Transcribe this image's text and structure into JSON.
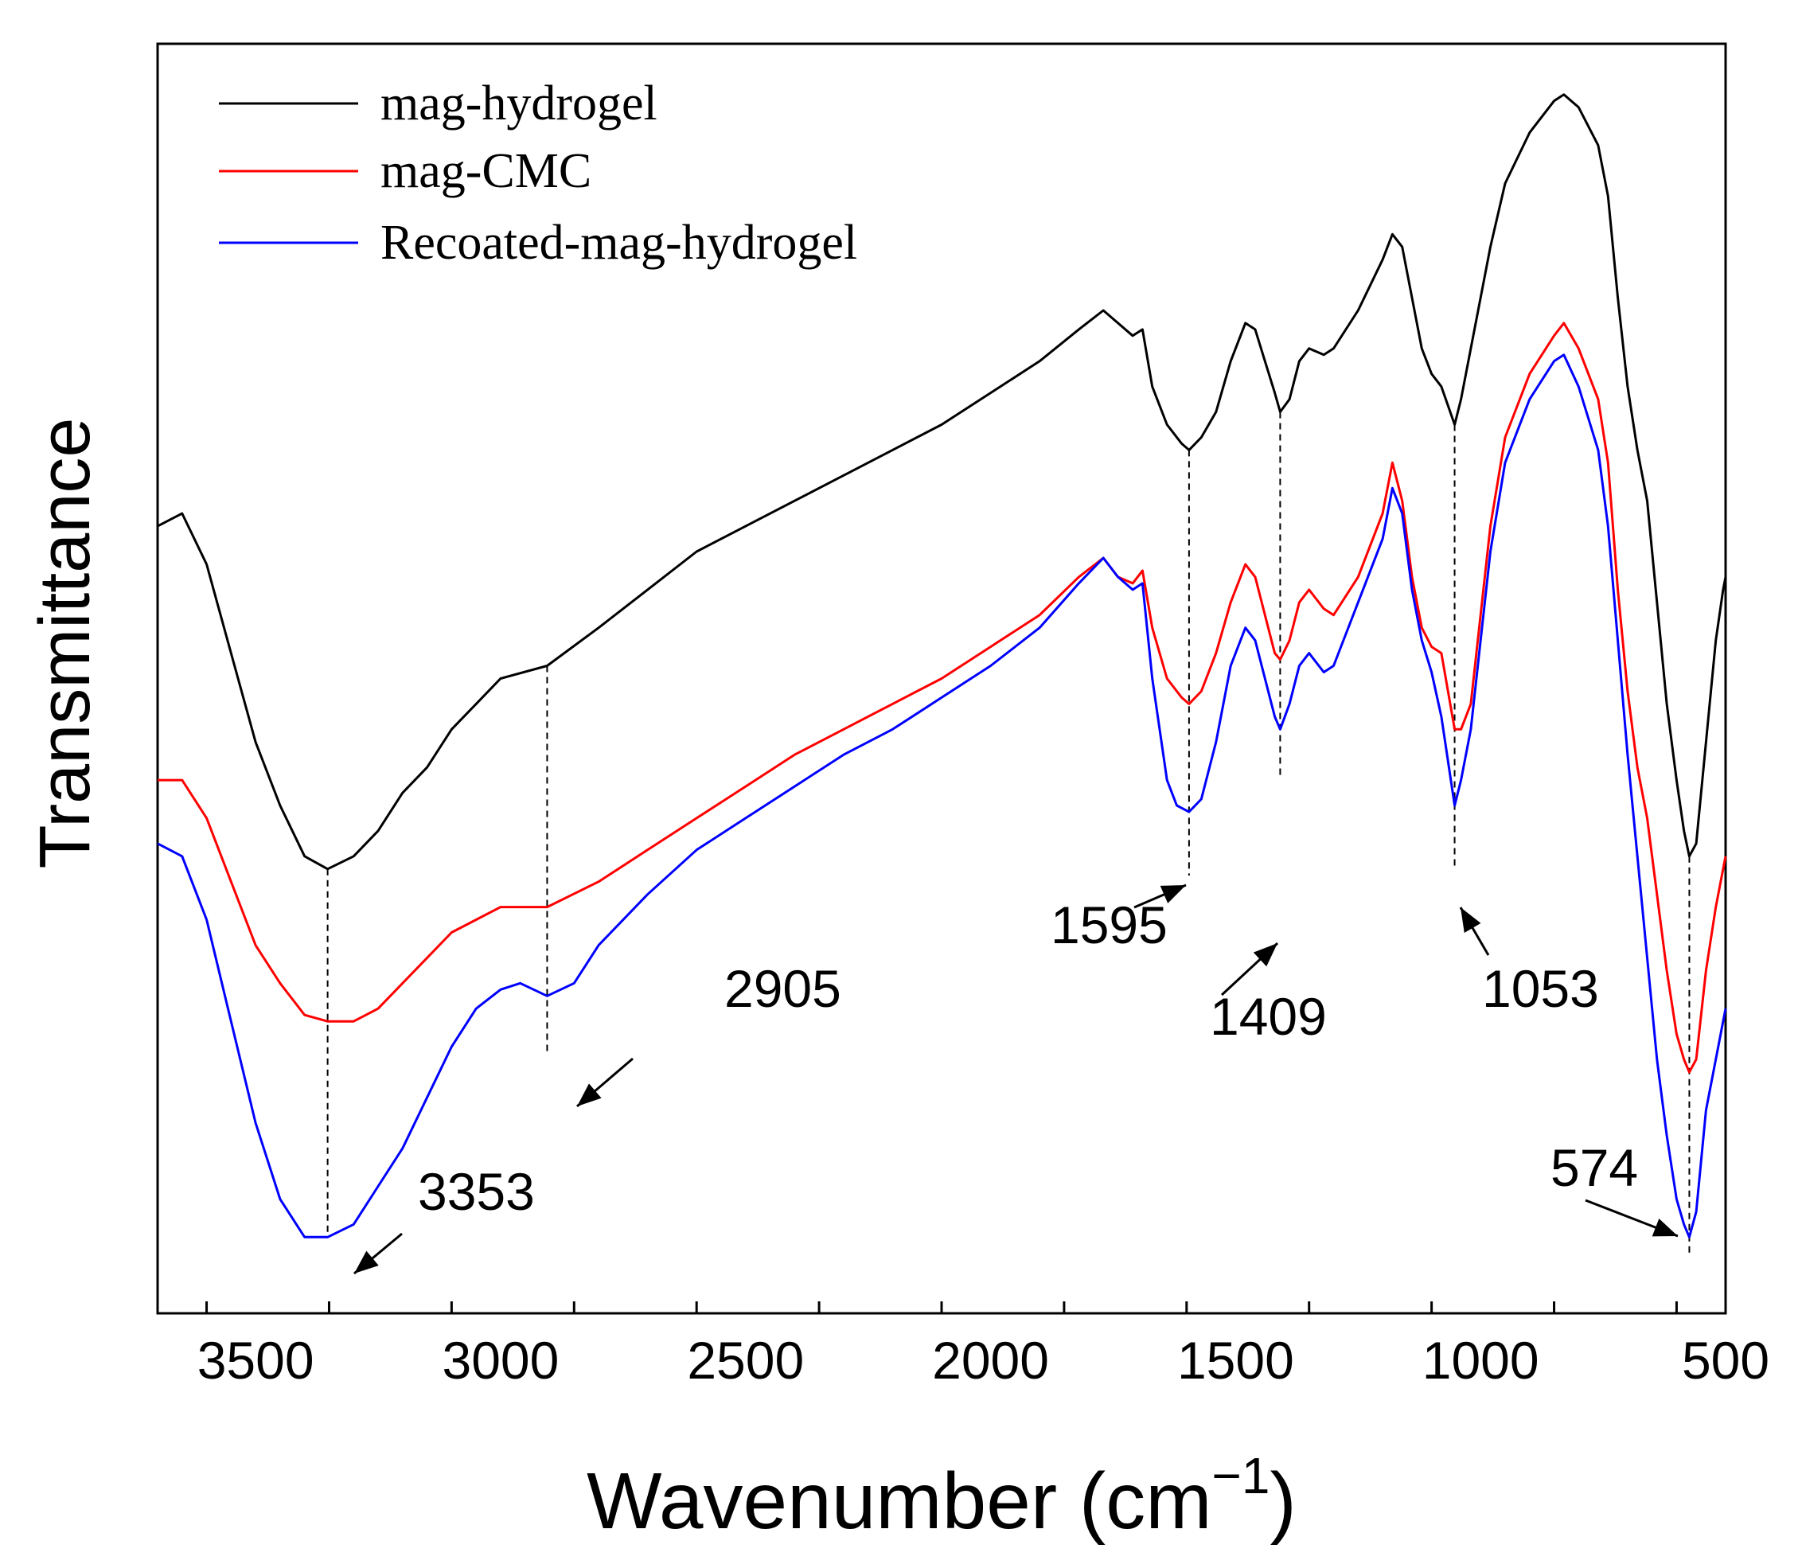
{
  "chart_data": {
    "type": "line",
    "title": "",
    "xlabel": "Wavenumber (cm",
    "xlabel_superscript": "−1",
    "xlabel_close": ")",
    "ylabel": "Transmittance",
    "xlim": [
      3700,
      500
    ],
    "x_reversed": true,
    "ylim": [
      0,
      100
    ],
    "y_tick_labels_shown": false,
    "x_ticks": [
      3500,
      3000,
      2500,
      2000,
      1500,
      1000,
      500
    ],
    "x_tick_labels": [
      "3500",
      "3000",
      "2500",
      "2000",
      "1500",
      "1000",
      "500"
    ],
    "grid": false,
    "legend_position": "top-left",
    "series": [
      {
        "name": "mag-hydrogel",
        "color": "#000000",
        "points": [
          [
            3700,
            62
          ],
          [
            3650,
            63
          ],
          [
            3600,
            59
          ],
          [
            3550,
            52
          ],
          [
            3500,
            45
          ],
          [
            3450,
            40
          ],
          [
            3400,
            36
          ],
          [
            3353,
            35
          ],
          [
            3300,
            36
          ],
          [
            3250,
            38
          ],
          [
            3200,
            41
          ],
          [
            3150,
            43
          ],
          [
            3100,
            46
          ],
          [
            3050,
            48
          ],
          [
            3000,
            50
          ],
          [
            2905,
            51
          ],
          [
            2800,
            54
          ],
          [
            2700,
            57
          ],
          [
            2600,
            60
          ],
          [
            2500,
            62
          ],
          [
            2400,
            64
          ],
          [
            2300,
            66
          ],
          [
            2200,
            68
          ],
          [
            2100,
            70
          ],
          [
            2000,
            72.5
          ],
          [
            1900,
            75
          ],
          [
            1820,
            77.5
          ],
          [
            1770,
            79
          ],
          [
            1740,
            78
          ],
          [
            1710,
            77
          ],
          [
            1690,
            77.5
          ],
          [
            1670,
            73
          ],
          [
            1640,
            70
          ],
          [
            1610,
            68.5
          ],
          [
            1595,
            68
          ],
          [
            1570,
            69
          ],
          [
            1540,
            71
          ],
          [
            1510,
            75
          ],
          [
            1480,
            78
          ],
          [
            1460,
            77.5
          ],
          [
            1440,
            75
          ],
          [
            1420,
            72.5
          ],
          [
            1409,
            71
          ],
          [
            1390,
            72
          ],
          [
            1370,
            75
          ],
          [
            1350,
            76
          ],
          [
            1320,
            75.5
          ],
          [
            1300,
            76
          ],
          [
            1250,
            79
          ],
          [
            1200,
            83
          ],
          [
            1180,
            85
          ],
          [
            1160,
            84
          ],
          [
            1140,
            80
          ],
          [
            1120,
            76
          ],
          [
            1100,
            74
          ],
          [
            1080,
            73
          ],
          [
            1053,
            70
          ],
          [
            1040,
            72
          ],
          [
            1020,
            76
          ],
          [
            1000,
            80
          ],
          [
            980,
            84
          ],
          [
            950,
            89
          ],
          [
            900,
            93
          ],
          [
            850,
            95.5
          ],
          [
            830,
            96
          ],
          [
            800,
            95
          ],
          [
            760,
            92
          ],
          [
            740,
            88
          ],
          [
            720,
            80
          ],
          [
            700,
            73
          ],
          [
            680,
            68
          ],
          [
            660,
            64
          ],
          [
            640,
            56
          ],
          [
            620,
            48
          ],
          [
            600,
            42
          ],
          [
            585,
            38
          ],
          [
            574,
            36
          ],
          [
            560,
            37
          ],
          [
            540,
            45
          ],
          [
            520,
            53
          ],
          [
            505,
            57
          ],
          [
            500,
            58
          ]
        ]
      },
      {
        "name": "mag-CMC",
        "color": "#ff0000",
        "points": [
          [
            3700,
            42
          ],
          [
            3650,
            42
          ],
          [
            3600,
            39
          ],
          [
            3550,
            34
          ],
          [
            3500,
            29
          ],
          [
            3450,
            26
          ],
          [
            3400,
            23.5
          ],
          [
            3353,
            23
          ],
          [
            3300,
            23
          ],
          [
            3250,
            24
          ],
          [
            3200,
            26
          ],
          [
            3150,
            28
          ],
          [
            3100,
            30
          ],
          [
            3050,
            31
          ],
          [
            3000,
            32
          ],
          [
            2905,
            32
          ],
          [
            2800,
            34
          ],
          [
            2700,
            36.5
          ],
          [
            2600,
            39
          ],
          [
            2500,
            41.5
          ],
          [
            2400,
            44
          ],
          [
            2300,
            46
          ],
          [
            2200,
            48
          ],
          [
            2100,
            50
          ],
          [
            2000,
            52.5
          ],
          [
            1900,
            55
          ],
          [
            1820,
            58
          ],
          [
            1770,
            59.5
          ],
          [
            1740,
            58
          ],
          [
            1710,
            57.5
          ],
          [
            1690,
            58.5
          ],
          [
            1670,
            54
          ],
          [
            1640,
            50
          ],
          [
            1610,
            48.5
          ],
          [
            1595,
            48
          ],
          [
            1570,
            49
          ],
          [
            1540,
            52
          ],
          [
            1510,
            56
          ],
          [
            1480,
            59
          ],
          [
            1460,
            58
          ],
          [
            1440,
            55
          ],
          [
            1420,
            52
          ],
          [
            1409,
            51.5
          ],
          [
            1390,
            53
          ],
          [
            1370,
            56
          ],
          [
            1350,
            57
          ],
          [
            1320,
            55.5
          ],
          [
            1300,
            55
          ],
          [
            1250,
            58
          ],
          [
            1200,
            63
          ],
          [
            1180,
            67
          ],
          [
            1160,
            64
          ],
          [
            1140,
            58
          ],
          [
            1120,
            54
          ],
          [
            1100,
            52.5
          ],
          [
            1080,
            52
          ],
          [
            1053,
            46
          ],
          [
            1040,
            46
          ],
          [
            1020,
            48
          ],
          [
            1000,
            55
          ],
          [
            980,
            62
          ],
          [
            950,
            69
          ],
          [
            900,
            74
          ],
          [
            850,
            77
          ],
          [
            830,
            78
          ],
          [
            800,
            76
          ],
          [
            760,
            72
          ],
          [
            740,
            67
          ],
          [
            720,
            57
          ],
          [
            700,
            49
          ],
          [
            680,
            43
          ],
          [
            660,
            39
          ],
          [
            640,
            33
          ],
          [
            620,
            27
          ],
          [
            600,
            22
          ],
          [
            585,
            20
          ],
          [
            574,
            19
          ],
          [
            560,
            20
          ],
          [
            540,
            27
          ],
          [
            520,
            32
          ],
          [
            505,
            35
          ],
          [
            500,
            36
          ]
        ]
      },
      {
        "name": "Recoated-mag-hydrogel",
        "color": "#0000ff",
        "points": [
          [
            3700,
            37
          ],
          [
            3650,
            36
          ],
          [
            3600,
            31
          ],
          [
            3550,
            23
          ],
          [
            3500,
            15
          ],
          [
            3450,
            9
          ],
          [
            3400,
            6
          ],
          [
            3353,
            6
          ],
          [
            3300,
            7
          ],
          [
            3250,
            10
          ],
          [
            3200,
            13
          ],
          [
            3150,
            17
          ],
          [
            3100,
            21
          ],
          [
            3050,
            24
          ],
          [
            3000,
            25.5
          ],
          [
            2960,
            26
          ],
          [
            2905,
            25
          ],
          [
            2850,
            26
          ],
          [
            2800,
            29
          ],
          [
            2700,
            33
          ],
          [
            2600,
            36.5
          ],
          [
            2500,
            39
          ],
          [
            2400,
            41.5
          ],
          [
            2300,
            44
          ],
          [
            2200,
            46
          ],
          [
            2100,
            48.5
          ],
          [
            2000,
            51
          ],
          [
            1900,
            54
          ],
          [
            1820,
            57.5
          ],
          [
            1770,
            59.5
          ],
          [
            1740,
            58
          ],
          [
            1710,
            57
          ],
          [
            1690,
            57.5
          ],
          [
            1670,
            50
          ],
          [
            1640,
            42
          ],
          [
            1620,
            40
          ],
          [
            1595,
            39.5
          ],
          [
            1570,
            40.5
          ],
          [
            1540,
            45
          ],
          [
            1510,
            51
          ],
          [
            1480,
            54
          ],
          [
            1460,
            53
          ],
          [
            1440,
            50
          ],
          [
            1420,
            47
          ],
          [
            1409,
            46
          ],
          [
            1390,
            48
          ],
          [
            1370,
            51
          ],
          [
            1350,
            52
          ],
          [
            1320,
            50.5
          ],
          [
            1300,
            51
          ],
          [
            1250,
            56
          ],
          [
            1200,
            61
          ],
          [
            1180,
            65
          ],
          [
            1160,
            63
          ],
          [
            1140,
            57
          ],
          [
            1120,
            53
          ],
          [
            1100,
            50.5
          ],
          [
            1080,
            47
          ],
          [
            1053,
            40
          ],
          [
            1040,
            42
          ],
          [
            1020,
            46
          ],
          [
            1000,
            53
          ],
          [
            980,
            60
          ],
          [
            950,
            67
          ],
          [
            900,
            72
          ],
          [
            850,
            75
          ],
          [
            830,
            75.5
          ],
          [
            800,
            73
          ],
          [
            760,
            68
          ],
          [
            740,
            62
          ],
          [
            720,
            53
          ],
          [
            700,
            44
          ],
          [
            680,
            36
          ],
          [
            660,
            28
          ],
          [
            640,
            20
          ],
          [
            620,
            14
          ],
          [
            600,
            9
          ],
          [
            585,
            7
          ],
          [
            574,
            6
          ],
          [
            560,
            8
          ],
          [
            540,
            16
          ],
          [
            520,
            20
          ],
          [
            505,
            23
          ],
          [
            500,
            24
          ]
        ]
      }
    ],
    "annotations": [
      {
        "label": "3353",
        "x": 3353
      },
      {
        "label": "2905",
        "x": 2905
      },
      {
        "label": "1595",
        "x": 1595
      },
      {
        "label": "1409",
        "x": 1409
      },
      {
        "label": "1053",
        "x": 1053
      },
      {
        "label": "574",
        "x": 574
      }
    ]
  }
}
